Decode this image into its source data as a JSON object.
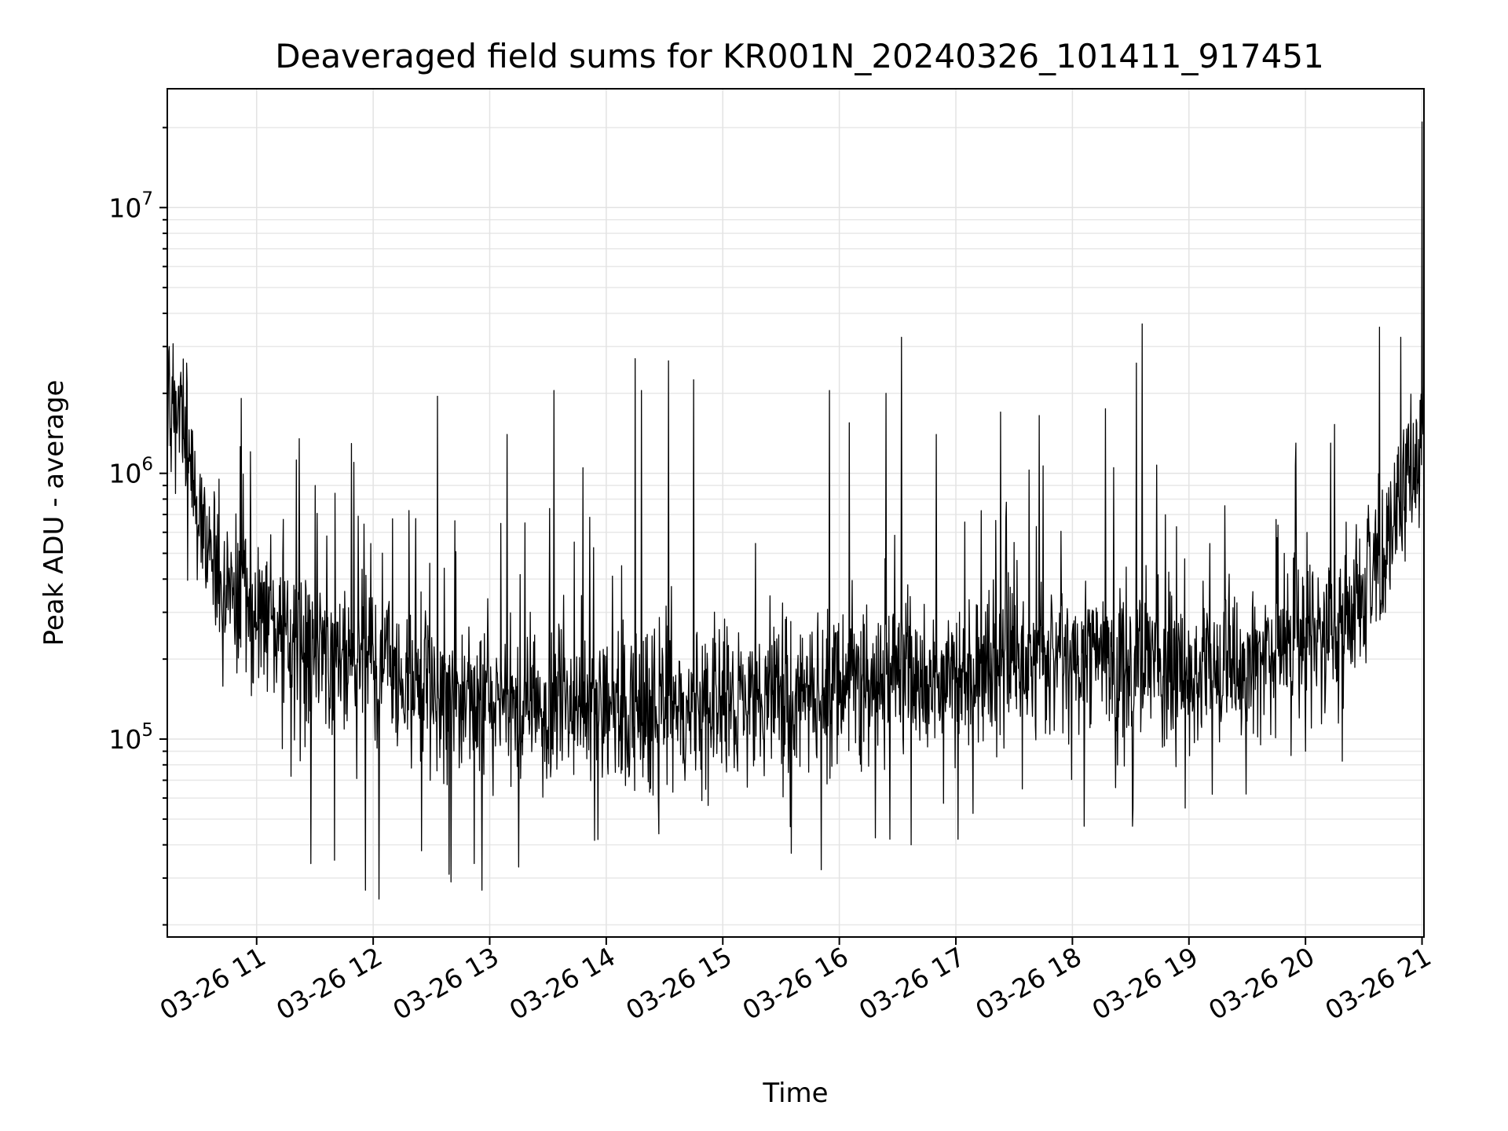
{
  "chart_data": {
    "type": "line",
    "title": "Deaveraged field sums for KR001N_20240326_101411_917451",
    "xlabel": "Time",
    "ylabel": "Peak ADU - average",
    "x_range": [
      "2024-03-26 10:14",
      "2024-03-26 21:01"
    ],
    "y_scale": "log",
    "ylim": [
      18000,
      28000000
    ],
    "grid": true,
    "x_ticks": [
      {
        "t": "2024-03-26 11:00",
        "label": "03-26 11"
      },
      {
        "t": "2024-03-26 12:00",
        "label": "03-26 12"
      },
      {
        "t": "2024-03-26 13:00",
        "label": "03-26 13"
      },
      {
        "t": "2024-03-26 14:00",
        "label": "03-26 14"
      },
      {
        "t": "2024-03-26 15:00",
        "label": "03-26 15"
      },
      {
        "t": "2024-03-26 16:00",
        "label": "03-26 16"
      },
      {
        "t": "2024-03-26 17:00",
        "label": "03-26 17"
      },
      {
        "t": "2024-03-26 18:00",
        "label": "03-26 18"
      },
      {
        "t": "2024-03-26 19:00",
        "label": "03-26 19"
      },
      {
        "t": "2024-03-26 20:00",
        "label": "03-26 20"
      },
      {
        "t": "2024-03-26 21:00",
        "label": "03-26 21"
      }
    ],
    "y_ticks": [
      {
        "value": 100000,
        "base": "10",
        "exp": "5"
      },
      {
        "value": 1000000,
        "base": "10",
        "exp": "6"
      },
      {
        "value": 10000000,
        "base": "10",
        "exp": "7"
      }
    ],
    "series": [
      {
        "color": "#000000",
        "points": [
          [
            "2024-03-26 10:14",
            1800000
          ],
          [
            "2024-03-26 10:20",
            1500000
          ],
          [
            "2024-03-26 10:25",
            1200000
          ],
          [
            "2024-03-26 10:30",
            900000
          ],
          [
            "2024-03-26 10:35",
            550000
          ],
          [
            "2024-03-26 10:45",
            350000
          ],
          [
            "2024-03-26 11:00",
            300000
          ],
          [
            "2024-03-26 11:15",
            260000
          ],
          [
            "2024-03-26 11:30",
            230000
          ],
          [
            "2024-03-26 11:45",
            210000
          ],
          [
            "2024-03-26 12:00",
            190000
          ],
          [
            "2024-03-26 12:15",
            170000
          ],
          [
            "2024-03-26 12:30",
            150000
          ],
          [
            "2024-03-26 12:45",
            140000
          ],
          [
            "2024-03-26 13:00",
            135000
          ],
          [
            "2024-03-26 13:30",
            130000
          ],
          [
            "2024-03-26 14:00",
            125000
          ],
          [
            "2024-03-26 14:30",
            130000
          ],
          [
            "2024-03-26 15:00",
            135000
          ],
          [
            "2024-03-26 15:30",
            140000
          ],
          [
            "2024-03-26 16:00",
            150000
          ],
          [
            "2024-03-26 16:30",
            175000
          ],
          [
            "2024-03-26 17:00",
            165000
          ],
          [
            "2024-03-26 17:30",
            200000
          ],
          [
            "2024-03-26 18:00",
            210000
          ],
          [
            "2024-03-26 18:30",
            195000
          ],
          [
            "2024-03-26 19:00",
            180000
          ],
          [
            "2024-03-26 19:30",
            200000
          ],
          [
            "2024-03-26 20:00",
            240000
          ],
          [
            "2024-03-26 20:20",
            300000
          ],
          [
            "2024-03-26 20:40",
            450000
          ],
          [
            "2024-03-26 20:55",
            1000000
          ],
          [
            "2024-03-26 21:00",
            1400000
          ]
        ],
        "peaks": [
          [
            "2024-03-26 10:15",
            3000000
          ],
          [
            "2024-03-26 10:24",
            2600000
          ],
          [
            "2024-03-26 11:22",
            1350000
          ],
          [
            "2024-03-26 11:50",
            1100000
          ],
          [
            "2024-03-26 12:33",
            1950000
          ],
          [
            "2024-03-26 13:09",
            1400000
          ],
          [
            "2024-03-26 13:33",
            2050000
          ],
          [
            "2024-03-26 13:48",
            1050000
          ],
          [
            "2024-03-26 14:15",
            2700000
          ],
          [
            "2024-03-26 14:18",
            2050000
          ],
          [
            "2024-03-26 14:32",
            2650000
          ],
          [
            "2024-03-26 14:45",
            2250000
          ],
          [
            "2024-03-26 15:55",
            2050000
          ],
          [
            "2024-03-26 16:05",
            1550000
          ],
          [
            "2024-03-26 16:24",
            2000000
          ],
          [
            "2024-03-26 16:32",
            3250000
          ],
          [
            "2024-03-26 16:50",
            1400000
          ],
          [
            "2024-03-26 17:23",
            1700000
          ],
          [
            "2024-03-26 17:43",
            1650000
          ],
          [
            "2024-03-26 18:17",
            1750000
          ],
          [
            "2024-03-26 18:33",
            2600000
          ],
          [
            "2024-03-26 18:36",
            3650000
          ],
          [
            "2024-03-26 19:55",
            1300000
          ],
          [
            "2024-03-26 20:13",
            1300000
          ],
          [
            "2024-03-26 20:38",
            3550000
          ],
          [
            "2024-03-26 20:49",
            3250000
          ],
          [
            "2024-03-26 21:00",
            21000000
          ]
        ],
        "troughs": [
          [
            "2024-03-26 11:28",
            34000
          ],
          [
            "2024-03-26 11:40",
            35000
          ],
          [
            "2024-03-26 11:56",
            27000
          ],
          [
            "2024-03-26 12:03",
            25000
          ],
          [
            "2024-03-26 12:25",
            38000
          ],
          [
            "2024-03-26 12:39",
            31000
          ],
          [
            "2024-03-26 12:40",
            29000
          ],
          [
            "2024-03-26 12:56",
            27000
          ],
          [
            "2024-03-26 13:15",
            33000
          ],
          [
            "2024-03-26 14:27",
            44000
          ],
          [
            "2024-03-26 16:26",
            42000
          ],
          [
            "2024-03-26 16:37",
            40000
          ],
          [
            "2024-03-26 17:01",
            42000
          ],
          [
            "2024-03-26 18:06",
            47000
          ],
          [
            "2024-03-26 18:31",
            47000
          ],
          [
            "2024-03-26 18:58",
            55000
          ],
          [
            "2024-03-26 19:12",
            62000
          ],
          [
            "2024-03-26 20:00",
            90000
          ]
        ]
      }
    ]
  }
}
